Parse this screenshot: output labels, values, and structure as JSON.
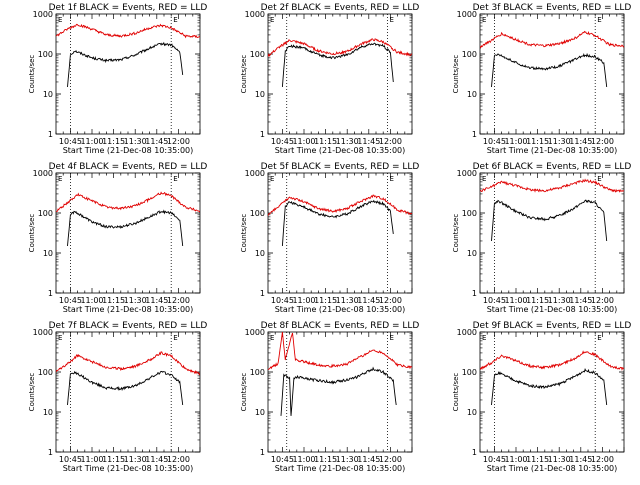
{
  "chart_data": [
    {
      "type": "line",
      "title": "Det 1f BLACK = Events, RED = LLD",
      "xlabel": "Start Time (21-Dec-08 10:35:00)",
      "ylabel": "Counts/sec",
      "yscale": "log",
      "ylim": [
        1,
        1000
      ],
      "x_tick_labels": [
        "10:45",
        "11:00",
        "11:15",
        "11:30",
        "11:45",
        "12:00"
      ],
      "y_tick_labels": [
        "1",
        "10",
        "100",
        "1000"
      ],
      "markers": [
        "E",
        "E"
      ],
      "marker_times": [
        "10:45",
        "11:55"
      ],
      "series": [
        {
          "color": "#000000",
          "x": [
            "10:43",
            "10:45",
            "10:48",
            "11:00",
            "11:10",
            "11:20",
            "11:30",
            "11:40",
            "11:48",
            "11:55",
            "12:01",
            "12:03"
          ],
          "values": [
            15,
            95,
            120,
            80,
            68,
            72,
            95,
            140,
            180,
            170,
            110,
            30
          ]
        },
        {
          "color": "#e00000",
          "x": [
            "10:35",
            "10:43",
            "10:50",
            "11:00",
            "11:10",
            "11:20",
            "11:30",
            "11:40",
            "11:48",
            "11:55",
            "12:05",
            "12:15"
          ],
          "values": [
            280,
            420,
            550,
            420,
            300,
            280,
            330,
            450,
            520,
            450,
            280,
            270
          ]
        }
      ]
    },
    {
      "type": "line",
      "title": "Det 2f BLACK = Events, RED = LLD",
      "xlabel": "Start Time (21-Dec-08 10:35:00)",
      "ylabel": "Counts/sec",
      "yscale": "log",
      "ylim": [
        1,
        1000
      ],
      "x_tick_labels": [
        "10:45",
        "11:00",
        "11:15",
        "11:30",
        "11:45",
        "12:00"
      ],
      "y_tick_labels": [
        "1",
        "10",
        "100",
        "1000"
      ],
      "markers": [
        "E",
        "E"
      ],
      "marker_times": [
        "10:48",
        "11:58"
      ],
      "series": [
        {
          "color": "#000000",
          "x": [
            "10:45",
            "10:47",
            "10:50",
            "11:00",
            "11:10",
            "11:20",
            "11:30",
            "11:40",
            "11:48",
            "11:55",
            "12:00",
            "12:02"
          ],
          "values": [
            15,
            120,
            160,
            140,
            95,
            80,
            95,
            150,
            180,
            160,
            110,
            20
          ]
        },
        {
          "color": "#e00000",
          "x": [
            "10:35",
            "10:43",
            "10:50",
            "11:00",
            "11:10",
            "11:20",
            "11:30",
            "11:40",
            "11:48",
            "11:55",
            "12:05",
            "12:15"
          ],
          "values": [
            90,
            150,
            220,
            180,
            120,
            100,
            115,
            180,
            230,
            200,
            110,
            95
          ]
        }
      ]
    },
    {
      "type": "line",
      "title": "Det 3f BLACK = Events, RED = LLD",
      "xlabel": "Start Time (21-Dec-08 10:35:00)",
      "ylabel": "Counts/sec",
      "yscale": "log",
      "ylim": [
        1,
        1000
      ],
      "x_tick_labels": [
        "10:45",
        "11:00",
        "11:15",
        "11:30",
        "11:45",
        "12:00"
      ],
      "y_tick_labels": [
        "1",
        "10",
        "100",
        "1000"
      ],
      "markers": [
        "E",
        "E"
      ],
      "marker_times": [
        "10:45",
        "11:55"
      ],
      "series": [
        {
          "color": "#000000",
          "x": [
            "10:43",
            "10:45",
            "10:48",
            "11:00",
            "11:10",
            "11:20",
            "11:30",
            "11:40",
            "11:48",
            "11:55",
            "12:01",
            "12:03"
          ],
          "values": [
            15,
            90,
            100,
            60,
            45,
            42,
            50,
            70,
            95,
            85,
            60,
            15
          ]
        },
        {
          "color": "#e00000",
          "x": [
            "10:35",
            "10:43",
            "10:50",
            "11:00",
            "11:10",
            "11:20",
            "11:30",
            "11:40",
            "11:48",
            "11:55",
            "12:05",
            "12:15"
          ],
          "values": [
            150,
            220,
            320,
            230,
            170,
            160,
            180,
            240,
            350,
            290,
            170,
            160
          ]
        }
      ]
    },
    {
      "type": "line",
      "title": "Det 4f BLACK = Events, RED = LLD",
      "xlabel": "Start Time (21-Dec-08 10:35:00)",
      "ylabel": "Counts/sec",
      "yscale": "log",
      "ylim": [
        1,
        1000
      ],
      "x_tick_labels": [
        "10:45",
        "11:00",
        "11:15",
        "11:30",
        "11:45",
        "12:00"
      ],
      "y_tick_labels": [
        "1",
        "10",
        "100",
        "1000"
      ],
      "markers": [
        "E",
        "E"
      ],
      "marker_times": [
        "10:45",
        "11:55"
      ],
      "series": [
        {
          "color": "#000000",
          "x": [
            "10:43",
            "10:45",
            "10:48",
            "11:00",
            "11:10",
            "11:20",
            "11:30",
            "11:40",
            "11:48",
            "11:55",
            "12:01",
            "12:03"
          ],
          "values": [
            15,
            90,
            110,
            60,
            45,
            45,
            55,
            80,
            110,
            100,
            65,
            15
          ]
        },
        {
          "color": "#e00000",
          "x": [
            "10:35",
            "10:43",
            "10:50",
            "11:00",
            "11:10",
            "11:20",
            "11:30",
            "11:40",
            "11:48",
            "11:55",
            "12:05",
            "12:15"
          ],
          "values": [
            110,
            180,
            290,
            200,
            140,
            130,
            150,
            220,
            320,
            270,
            140,
            110
          ]
        }
      ]
    },
    {
      "type": "line",
      "title": "Det 5f BLACK = Events, RED = LLD",
      "xlabel": "Start Time (21-Dec-08 10:35:00)",
      "ylabel": "Counts/sec",
      "yscale": "log",
      "ylim": [
        1,
        1000
      ],
      "x_tick_labels": [
        "10:45",
        "11:00",
        "11:15",
        "11:30",
        "11:45",
        "12:00"
      ],
      "y_tick_labels": [
        "1",
        "10",
        "100",
        "1000"
      ],
      "markers": [
        "E",
        "E"
      ],
      "marker_times": [
        "10:48",
        "11:58"
      ],
      "series": [
        {
          "color": "#000000",
          "x": [
            "10:45",
            "10:47",
            "10:50",
            "11:00",
            "11:10",
            "11:20",
            "11:30",
            "11:40",
            "11:48",
            "11:55",
            "12:00",
            "12:02"
          ],
          "values": [
            15,
            150,
            190,
            140,
            95,
            80,
            95,
            150,
            200,
            170,
            110,
            30
          ]
        },
        {
          "color": "#e00000",
          "x": [
            "10:35",
            "10:43",
            "10:50",
            "11:00",
            "11:10",
            "11:20",
            "11:30",
            "11:40",
            "11:48",
            "11:55",
            "12:05",
            "12:15"
          ],
          "values": [
            90,
            150,
            250,
            190,
            130,
            110,
            130,
            200,
            270,
            230,
            120,
            95
          ]
        }
      ]
    },
    {
      "type": "line",
      "title": "Det 6f BLACK = Events, RED = LLD",
      "xlabel": "Start Time (21-Dec-08 10:35:00)",
      "ylabel": "Counts/sec",
      "yscale": "log",
      "ylim": [
        1,
        1000
      ],
      "x_tick_labels": [
        "10:45",
        "11:00",
        "11:15",
        "11:30",
        "11:45",
        "12:00"
      ],
      "y_tick_labels": [
        "1",
        "10",
        "100",
        "1000"
      ],
      "markers": [
        "E",
        "E"
      ],
      "marker_times": [
        "10:45",
        "11:55"
      ],
      "series": [
        {
          "color": "#000000",
          "x": [
            "10:43",
            "10:45",
            "10:48",
            "11:00",
            "11:10",
            "11:20",
            "11:30",
            "11:40",
            "11:48",
            "11:55",
            "12:01",
            "12:03"
          ],
          "values": [
            20,
            170,
            200,
            110,
            75,
            70,
            85,
            130,
            200,
            180,
            100,
            20
          ]
        },
        {
          "color": "#e00000",
          "x": [
            "10:35",
            "10:43",
            "10:50",
            "11:00",
            "11:10",
            "11:20",
            "11:30",
            "11:40",
            "11:48",
            "11:55",
            "12:05",
            "12:15"
          ],
          "values": [
            350,
            450,
            600,
            480,
            380,
            360,
            420,
            550,
            650,
            580,
            380,
            340
          ]
        }
      ]
    },
    {
      "type": "line",
      "title": "Det 7f BLACK = Events, RED = LLD",
      "xlabel": "Start Time (21-Dec-08 10:35:00)",
      "ylabel": "Counts/sec",
      "yscale": "log",
      "ylim": [
        1,
        1000
      ],
      "x_tick_labels": [
        "10:45",
        "11:00",
        "11:15",
        "11:30",
        "11:45",
        "12:00"
      ],
      "y_tick_labels": [
        "1",
        "10",
        "100",
        "1000"
      ],
      "markers": [
        "E",
        "E"
      ],
      "marker_times": [
        "10:45",
        "11:55"
      ],
      "series": [
        {
          "color": "#000000",
          "x": [
            "10:43",
            "10:45",
            "10:48",
            "11:00",
            "11:10",
            "11:20",
            "11:30",
            "11:40",
            "11:48",
            "11:55",
            "12:01",
            "12:03"
          ],
          "values": [
            15,
            90,
            100,
            55,
            40,
            38,
            45,
            70,
            100,
            85,
            55,
            15
          ]
        },
        {
          "color": "#e00000",
          "x": [
            "10:35",
            "10:43",
            "10:50",
            "11:00",
            "11:10",
            "11:20",
            "11:30",
            "11:40",
            "11:48",
            "11:55",
            "12:05",
            "12:15"
          ],
          "values": [
            100,
            160,
            260,
            180,
            130,
            120,
            140,
            200,
            300,
            250,
            120,
            90
          ]
        }
      ]
    },
    {
      "type": "line",
      "title": "Det 8f BLACK = Events, RED = LLD",
      "xlabel": "Start Time (21-Dec-08 10:35:00)",
      "ylabel": "Counts/sec",
      "yscale": "log",
      "ylim": [
        1,
        1000
      ],
      "x_tick_labels": [
        "10:45",
        "11:00",
        "11:15",
        "11:30",
        "11:45",
        "12:00"
      ],
      "y_tick_labels": [
        "1",
        "10",
        "100",
        "1000"
      ],
      "markers": [
        "E",
        "E"
      ],
      "marker_times": [
        "10:48",
        "11:58"
      ],
      "series": [
        {
          "color": "#000000",
          "x": [
            "10:44",
            "10:46",
            "10:50",
            "10:51",
            "10:53",
            "10:55",
            "11:05",
            "11:20",
            "11:35",
            "11:48",
            "11:55",
            "12:02",
            "12:04"
          ],
          "values": [
            8,
            85,
            70,
            8,
            70,
            75,
            65,
            55,
            70,
            120,
            100,
            60,
            15
          ]
        },
        {
          "color": "#e00000",
          "x": [
            "10:35",
            "10:42",
            "10:45",
            "10:47",
            "10:52",
            "10:54",
            "11:00",
            "11:10",
            "11:20",
            "11:30",
            "11:40",
            "11:48",
            "11:55",
            "12:05",
            "12:15"
          ],
          "values": [
            120,
            160,
            1000,
            200,
            1000,
            200,
            180,
            150,
            140,
            160,
            250,
            350,
            300,
            150,
            130
          ]
        }
      ]
    },
    {
      "type": "line",
      "title": "Det 9f BLACK = Events, RED = LLD",
      "xlabel": "Start Time (21-Dec-08 10:35:00)",
      "ylabel": "Counts/sec",
      "yscale": "log",
      "ylim": [
        1,
        1000
      ],
      "x_tick_labels": [
        "10:45",
        "11:00",
        "11:15",
        "11:30",
        "11:45",
        "12:00"
      ],
      "y_tick_labels": [
        "1",
        "10",
        "100",
        "1000"
      ],
      "markers": [
        "E",
        "E"
      ],
      "marker_times": [
        "10:45",
        "11:55"
      ],
      "series": [
        {
          "color": "#000000",
          "x": [
            "10:43",
            "10:45",
            "10:48",
            "11:00",
            "11:10",
            "11:20",
            "11:30",
            "11:40",
            "11:48",
            "11:55",
            "12:01",
            "12:03"
          ],
          "values": [
            15,
            80,
            95,
            60,
            45,
            42,
            50,
            75,
            110,
            95,
            60,
            15
          ]
        },
        {
          "color": "#e00000",
          "x": [
            "10:35",
            "10:43",
            "10:50",
            "11:00",
            "11:10",
            "11:20",
            "11:30",
            "11:40",
            "11:48",
            "11:55",
            "12:05",
            "12:15"
          ],
          "values": [
            120,
            170,
            260,
            190,
            140,
            130,
            150,
            210,
            330,
            270,
            140,
            120
          ]
        }
      ]
    }
  ]
}
